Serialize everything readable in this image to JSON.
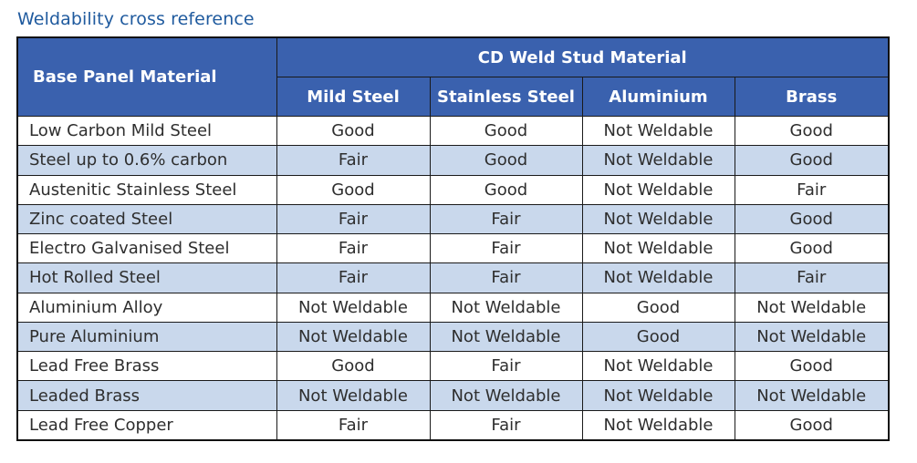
{
  "title": "Weldability cross reference",
  "table": {
    "corner_header": "Base Panel Material",
    "group_header": "CD Weld Stud Material",
    "columns": [
      "Mild Steel",
      "Stainless Steel",
      "Aluminium",
      "Brass"
    ],
    "rows": [
      {
        "material": "Low Carbon Mild Steel",
        "values": [
          "Good",
          "Good",
          "Not Weldable",
          "Good"
        ]
      },
      {
        "material": "Steel up to 0.6% carbon",
        "values": [
          "Fair",
          "Good",
          "Not Weldable",
          "Good"
        ]
      },
      {
        "material": "Austenitic Stainless Steel",
        "values": [
          "Good",
          "Good",
          "Not Weldable",
          "Fair"
        ]
      },
      {
        "material": "Zinc coated Steel",
        "values": [
          "Fair",
          "Fair",
          "Not Weldable",
          "Good"
        ]
      },
      {
        "material": "Electro Galvanised Steel",
        "values": [
          "Fair",
          "Fair",
          "Not Weldable",
          "Good"
        ]
      },
      {
        "material": "Hot Rolled Steel",
        "values": [
          "Fair",
          "Fair",
          "Not Weldable",
          "Fair"
        ]
      },
      {
        "material": "Aluminium Alloy",
        "values": [
          "Not Weldable",
          "Not Weldable",
          "Good",
          "Not Weldable"
        ]
      },
      {
        "material": "Pure Aluminium",
        "values": [
          "Not Weldable",
          "Not Weldable",
          "Good",
          "Not Weldable"
        ]
      },
      {
        "material": "Lead Free Brass",
        "values": [
          "Good",
          "Fair",
          "Not Weldable",
          "Good"
        ]
      },
      {
        "material": "Leaded Brass",
        "values": [
          "Not Weldable",
          "Not Weldable",
          "Not Weldable",
          "Not Weldable"
        ]
      },
      {
        "material": "Lead Free Copper",
        "values": [
          "Fair",
          "Fair",
          "Not Weldable",
          "Good"
        ]
      }
    ]
  },
  "colors": {
    "title": "#1f5a9e",
    "header_bg": "#3a61ae",
    "header_text": "#ffffff",
    "stripe": "#c9d8ec",
    "border": "#1a1a1a"
  }
}
